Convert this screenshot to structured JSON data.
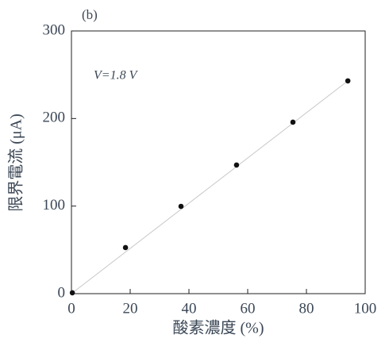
{
  "chart_data": {
    "type": "scatter",
    "panel_label": "(b)",
    "annotation": "V=1.8 V",
    "x_label": "酸素濃度 (%)",
    "y_label": "限界電流 (μA)",
    "x": [
      0.3,
      18.4,
      37.3,
      56.2,
      75.4,
      94.1
    ],
    "values": [
      1,
      52.6,
      99.7,
      146.9,
      195.8,
      243
    ],
    "color": "#111111",
    "fit_line": {
      "x": [
        0,
        94.1
      ],
      "values": [
        0,
        243
      ],
      "color": "#c8c8c8"
    },
    "xlim": [
      0,
      100
    ],
    "xticks": [
      0,
      20,
      40,
      60,
      80,
      100
    ],
    "ylim": [
      0,
      300
    ],
    "yticks": [
      0,
      100,
      200,
      300
    ],
    "grid": false
  }
}
